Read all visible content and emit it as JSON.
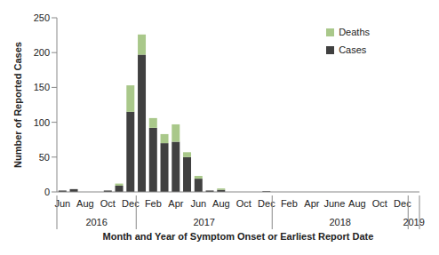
{
  "chart_data": {
    "type": "bar",
    "stacked": true,
    "x_label": "Month and Year of Symptom Onset or Earliest Report Date",
    "y_label": "Number of Reported Cases",
    "categories": [
      "Jun",
      null,
      "Aug",
      null,
      "Oct",
      null,
      "Dec",
      null,
      "Feb",
      null,
      "Apr",
      null,
      "Jun",
      null,
      "Aug",
      null,
      "Oct",
      null,
      "Dec",
      null,
      "Feb",
      null,
      "Apr",
      null,
      "June",
      null,
      "Aug",
      null,
      "Oct",
      null,
      "Dec",
      null
    ],
    "x_groups": [
      {
        "label": "2016",
        "count": 7
      },
      {
        "label": "2017",
        "count": 12
      },
      {
        "label": "2018",
        "count": 12
      },
      {
        "label": "2019",
        "count": 1
      }
    ],
    "series": [
      {
        "name": "Cases",
        "color": "#404040",
        "values": [
          2,
          4,
          0,
          0,
          2,
          9,
          115,
          197,
          92,
          70,
          72,
          50,
          19,
          2,
          3,
          0,
          0,
          0,
          1,
          0,
          0,
          0,
          0,
          0,
          0,
          0,
          0,
          0,
          0,
          0,
          0,
          0
        ]
      },
      {
        "name": "Deaths",
        "color": "#a9c88a",
        "values": [
          0,
          0,
          0,
          0,
          0,
          3,
          38,
          29,
          14,
          13,
          25,
          7,
          4,
          0,
          2,
          0,
          0,
          0,
          0,
          0,
          0,
          0,
          0,
          0,
          0,
          0,
          0,
          0,
          0,
          0,
          0,
          0
        ]
      }
    ],
    "ylim": [
      0,
      250
    ],
    "yticks": [
      0,
      50,
      100,
      150,
      200,
      250
    ],
    "grid": false,
    "legend": "upper right"
  }
}
